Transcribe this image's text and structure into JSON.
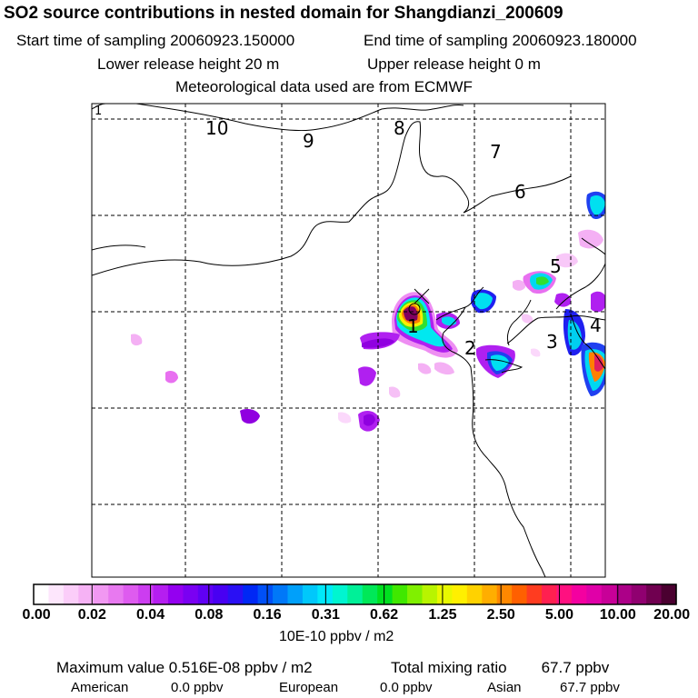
{
  "header": {
    "title": "SO2 source contributions in nested domain for Shangdianzi_200609",
    "start_label": "Start time of sampling 20060923.150000",
    "end_label": "End time of sampling 20060923.180000",
    "lower_label": "Lower release height   20 m",
    "upper_label": "Upper release height    0 m",
    "met_label": "Meteorological data used are from ECMWF"
  },
  "map": {
    "region_labels": [
      "10",
      "9",
      "8",
      "7",
      "6",
      "5",
      "4",
      "3",
      "2",
      "1"
    ],
    "corner_label": "1"
  },
  "colorbar": {
    "ticks": [
      "0.00",
      "0.02",
      "0.04",
      "0.08",
      "0.16",
      "0.31",
      "0.62",
      "1.25",
      "2.50",
      "5.00",
      "10.00",
      "20.00"
    ],
    "colors": [
      "#ffffff",
      "#fde6fc",
      "#fbcdf9",
      "#f6b2f5",
      "#f198f2",
      "#e879f0",
      "#de5bef",
      "#cc3df0",
      "#b51ef0",
      "#9400f0",
      "#7a00f2",
      "#6000f4",
      "#4800f2",
      "#2a10f4",
      "#0028f5",
      "#0050f7",
      "#0078f8",
      "#00a0fa",
      "#00c8fb",
      "#00e8fa",
      "#00f5d0",
      "#00f098",
      "#00e858",
      "#00e020",
      "#40e800",
      "#80f000",
      "#b8f400",
      "#e8f800",
      "#fff000",
      "#ffd200",
      "#ffae00",
      "#ff8800",
      "#ff6000",
      "#ff3c20",
      "#ff2050",
      "#ff1080",
      "#f400a0",
      "#e000a8",
      "#c80098",
      "#ac0088",
      "#900070",
      "#700050",
      "#4a0030"
    ],
    "units": "10E-10 ppbv / m2"
  },
  "summary": {
    "max_label": "Maximum value  0.516E-08 ppbv / m2",
    "total_label": "Total mixing ratio",
    "total_value": "67.7 ppbv",
    "sources": [
      {
        "name": "American",
        "value": "0.0 ppbv"
      },
      {
        "name": "European",
        "value": "0.0 ppbv"
      },
      {
        "name": "Asian",
        "value": "67.7 ppbv"
      }
    ]
  }
}
